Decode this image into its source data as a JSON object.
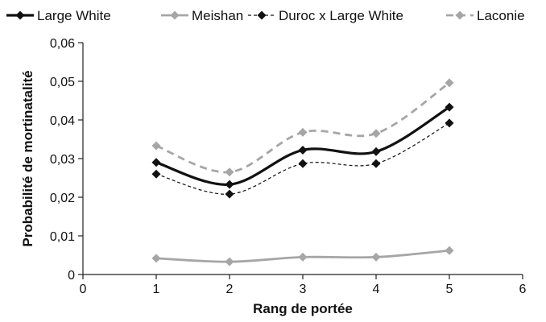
{
  "chart_data": {
    "type": "line",
    "title": "",
    "xlabel": "Rang de portée",
    "ylabel": "Probabilité de mortinatalité",
    "xlim": [
      0,
      6
    ],
    "ylim": [
      0,
      0.06
    ],
    "x_ticks": [
      0,
      1,
      2,
      3,
      4,
      5,
      6
    ],
    "x_tick_labels": [
      "0",
      "1",
      "2",
      "3",
      "4",
      "5",
      "6"
    ],
    "y_ticks": [
      0,
      0.01,
      0.02,
      0.03,
      0.04,
      0.05,
      0.06
    ],
    "y_tick_labels": [
      "0",
      "0,01",
      "0,02",
      "0,03",
      "0,04",
      "0,05",
      "0,06"
    ],
    "grid": false,
    "legend_position": "top",
    "x": [
      1,
      2,
      3,
      4,
      5
    ],
    "series": [
      {
        "name": "Large White",
        "values": [
          0.029,
          0.0233,
          0.0322,
          0.0318,
          0.0433
        ],
        "color": "#111111",
        "line_style": "solid",
        "line_weight": "heavy",
        "marker": "diamond"
      },
      {
        "name": "Meishan",
        "values": [
          0.0042,
          0.0033,
          0.0045,
          0.0045,
          0.0062
        ],
        "color": "#a6a6a6",
        "line_style": "solid",
        "line_weight": "medium",
        "marker": "diamond"
      },
      {
        "name": "Duroc x Large White",
        "values": [
          0.026,
          0.0208,
          0.0287,
          0.0287,
          0.0392
        ],
        "color": "#111111",
        "line_style": "dotted",
        "line_weight": "light",
        "marker": "diamond"
      },
      {
        "name": "Laconie",
        "values": [
          0.0333,
          0.0265,
          0.0368,
          0.0365,
          0.0496
        ],
        "color": "#a6a6a6",
        "line_style": "dashed",
        "line_weight": "medium",
        "marker": "diamond"
      }
    ]
  }
}
